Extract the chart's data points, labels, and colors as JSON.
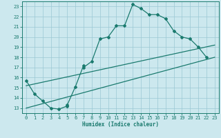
{
  "xlabel": "Humidex (Indice chaleur)",
  "bg_color": "#cce8ee",
  "grid_color": "#9ac8d4",
  "line_color": "#1a7a6e",
  "xlim": [
    -0.5,
    23.5
  ],
  "ylim": [
    12.5,
    23.5
  ],
  "xticks": [
    0,
    1,
    2,
    3,
    4,
    5,
    6,
    7,
    8,
    9,
    10,
    11,
    12,
    13,
    14,
    15,
    16,
    17,
    18,
    19,
    20,
    21,
    22,
    23
  ],
  "yticks": [
    13,
    14,
    15,
    16,
    17,
    18,
    19,
    20,
    21,
    22,
    23
  ],
  "line1_x": [
    0,
    1,
    2,
    3,
    4,
    5,
    5,
    6,
    7,
    7,
    8,
    9,
    10,
    11,
    12,
    13,
    14,
    15,
    16,
    17,
    18,
    19,
    20,
    21,
    22
  ],
  "line1_y": [
    15.7,
    14.4,
    13.7,
    13.0,
    12.9,
    13.2,
    13.3,
    15.1,
    17.2,
    17.0,
    17.6,
    19.8,
    20.0,
    21.1,
    21.1,
    23.2,
    22.8,
    22.2,
    22.2,
    21.8,
    20.6,
    20.0,
    19.8,
    19.0,
    18.0
  ],
  "line2_x": [
    0,
    23
  ],
  "line2_y": [
    15.2,
    19.2
  ],
  "line3_x": [
    0,
    23
  ],
  "line3_y": [
    13.0,
    18.0
  ]
}
